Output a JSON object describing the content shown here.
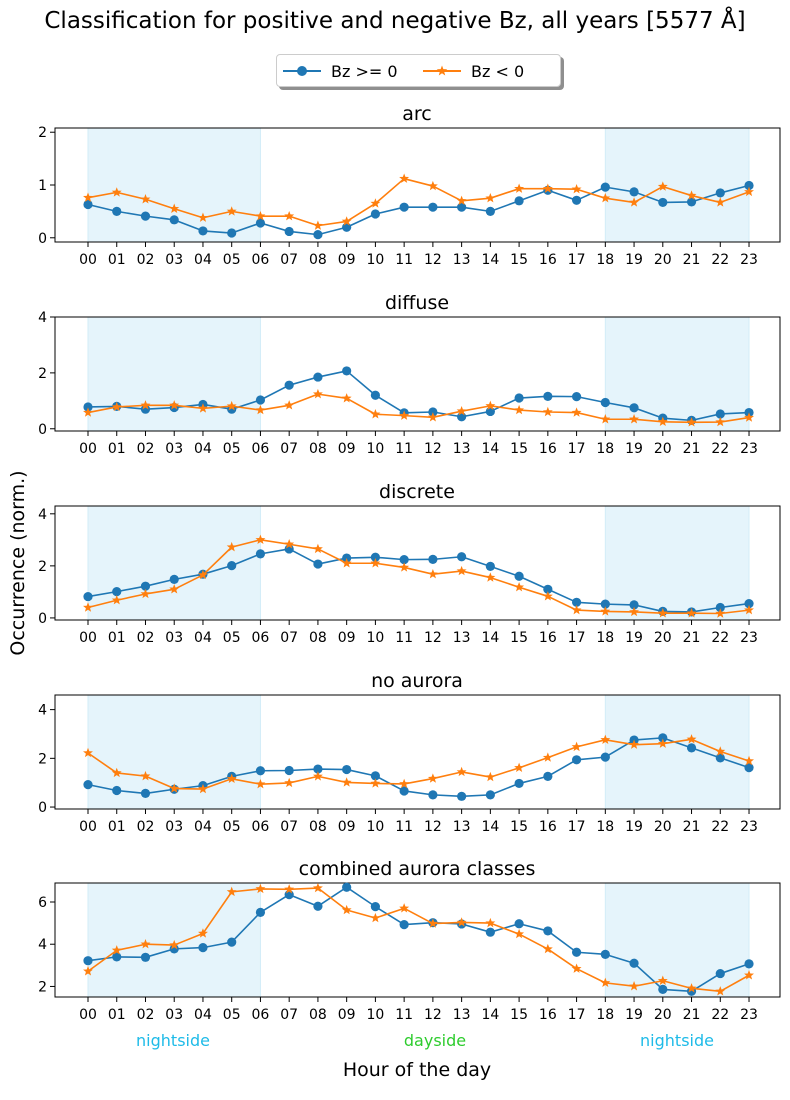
{
  "figure": {
    "title": "Classification for positive and negative Bz, all years [5577 Å]",
    "ylabel": "Occurrence (norm.)",
    "xlabel": "Hour of the day",
    "region_labels": [
      {
        "text": "nightside",
        "color": "#1ebbe8"
      },
      {
        "text": "dayside",
        "color": "#2ecc2e"
      },
      {
        "text": "nightside",
        "color": "#1ebbe8"
      }
    ],
    "legend": [
      {
        "label": "Bz >= 0",
        "color": "#1f77b4",
        "marker": "circle"
      },
      {
        "label": "Bz < 0",
        "color": "#ff7f0e",
        "marker": "star"
      }
    ],
    "shade_color": "#e5f4fb",
    "shaded_hour_ranges": [
      [
        "00",
        "06"
      ],
      [
        "18",
        "23"
      ]
    ]
  },
  "chart_data": [
    {
      "type": "line",
      "title": "arc",
      "x": [
        "00",
        "01",
        "02",
        "03",
        "04",
        "05",
        "06",
        "07",
        "08",
        "09",
        "10",
        "11",
        "12",
        "13",
        "14",
        "15",
        "16",
        "17",
        "18",
        "19",
        "20",
        "21",
        "22",
        "23"
      ],
      "ylim": [
        -0.08,
        2.08
      ],
      "yticks": [
        0,
        1,
        2
      ],
      "series": [
        {
          "name": "Bz >= 0",
          "values": [
            0.63,
            0.5,
            0.41,
            0.34,
            0.13,
            0.09,
            0.28,
            0.12,
            0.06,
            0.2,
            0.45,
            0.58,
            0.58,
            0.58,
            0.5,
            0.7,
            0.9,
            0.71,
            0.96,
            0.87,
            0.67,
            0.68,
            0.85,
            0.99
          ]
        },
        {
          "name": "Bz < 0",
          "values": [
            0.76,
            0.86,
            0.73,
            0.55,
            0.38,
            0.5,
            0.41,
            0.41,
            0.23,
            0.31,
            0.65,
            1.12,
            0.98,
            0.7,
            0.75,
            0.93,
            0.93,
            0.92,
            0.75,
            0.67,
            0.97,
            0.8,
            0.67,
            0.87
          ]
        }
      ]
    },
    {
      "type": "line",
      "title": "diffuse",
      "x": [
        "00",
        "01",
        "02",
        "03",
        "04",
        "05",
        "06",
        "07",
        "08",
        "09",
        "10",
        "11",
        "12",
        "13",
        "14",
        "15",
        "16",
        "17",
        "18",
        "19",
        "20",
        "21",
        "22",
        "23"
      ],
      "ylim": [
        -0.08,
        4.0
      ],
      "yticks": [
        0,
        2,
        4
      ],
      "series": [
        {
          "name": "Bz >= 0",
          "values": [
            0.78,
            0.8,
            0.7,
            0.76,
            0.87,
            0.7,
            1.03,
            1.56,
            1.85,
            2.07,
            1.2,
            0.57,
            0.6,
            0.43,
            0.62,
            1.1,
            1.16,
            1.15,
            0.94,
            0.75,
            0.38,
            0.3,
            0.53,
            0.58
          ]
        },
        {
          "name": "Bz < 0",
          "values": [
            0.58,
            0.78,
            0.84,
            0.84,
            0.73,
            0.81,
            0.67,
            0.84,
            1.24,
            1.09,
            0.52,
            0.47,
            0.41,
            0.63,
            0.82,
            0.67,
            0.6,
            0.58,
            0.34,
            0.34,
            0.25,
            0.23,
            0.24,
            0.4
          ]
        }
      ]
    },
    {
      "type": "line",
      "title": "discrete",
      "x": [
        "00",
        "01",
        "02",
        "03",
        "04",
        "05",
        "06",
        "07",
        "08",
        "09",
        "10",
        "11",
        "12",
        "13",
        "14",
        "15",
        "16",
        "17",
        "18",
        "19",
        "20",
        "21",
        "22",
        "23"
      ],
      "ylim": [
        -0.08,
        4.3
      ],
      "yticks": [
        0,
        2,
        4
      ],
      "series": [
        {
          "name": "Bz >= 0",
          "values": [
            0.82,
            1.01,
            1.22,
            1.48,
            1.68,
            2.01,
            2.46,
            2.65,
            2.07,
            2.3,
            2.33,
            2.24,
            2.25,
            2.35,
            1.98,
            1.6,
            1.1,
            0.6,
            0.53,
            0.5,
            0.25,
            0.23,
            0.4,
            0.55
          ]
        },
        {
          "name": "Bz < 0",
          "values": [
            0.4,
            0.68,
            0.92,
            1.1,
            1.65,
            2.72,
            3.0,
            2.83,
            2.65,
            2.1,
            2.1,
            1.94,
            1.68,
            1.8,
            1.55,
            1.18,
            0.83,
            0.3,
            0.25,
            0.23,
            0.18,
            0.18,
            0.17,
            0.3
          ]
        }
      ]
    },
    {
      "type": "line",
      "title": "no aurora",
      "x": [
        "00",
        "01",
        "02",
        "03",
        "04",
        "05",
        "06",
        "07",
        "08",
        "09",
        "10",
        "11",
        "12",
        "13",
        "14",
        "15",
        "16",
        "17",
        "18",
        "19",
        "20",
        "21",
        "22",
        "23"
      ],
      "ylim": [
        -0.08,
        4.6
      ],
      "yticks": [
        0,
        2,
        4
      ],
      "series": [
        {
          "name": "Bz >= 0",
          "values": [
            0.92,
            0.68,
            0.56,
            0.73,
            0.88,
            1.26,
            1.49,
            1.5,
            1.56,
            1.54,
            1.28,
            0.66,
            0.5,
            0.44,
            0.5,
            0.97,
            1.26,
            1.94,
            2.05,
            2.75,
            2.84,
            2.43,
            2.02,
            1.62
          ]
        },
        {
          "name": "Bz < 0",
          "values": [
            2.22,
            1.4,
            1.27,
            0.76,
            0.74,
            1.16,
            0.94,
            0.99,
            1.26,
            1.01,
            0.97,
            0.95,
            1.17,
            1.44,
            1.23,
            1.61,
            2.03,
            2.47,
            2.76,
            2.56,
            2.6,
            2.78,
            2.28,
            1.89
          ]
        }
      ]
    },
    {
      "type": "line",
      "title": "combined aurora classes",
      "x": [
        "00",
        "01",
        "02",
        "03",
        "04",
        "05",
        "06",
        "07",
        "08",
        "09",
        "10",
        "11",
        "12",
        "13",
        "14",
        "15",
        "16",
        "17",
        "18",
        "19",
        "20",
        "21",
        "22",
        "23"
      ],
      "ylim": [
        1.5,
        6.9
      ],
      "yticks": [
        2,
        4,
        6
      ],
      "series": [
        {
          "name": "Bz >= 0",
          "values": [
            3.22,
            3.4,
            3.38,
            3.78,
            3.84,
            4.1,
            5.51,
            6.35,
            5.8,
            6.7,
            5.78,
            4.93,
            5.02,
            4.96,
            4.57,
            4.97,
            4.63,
            3.62,
            3.52,
            3.1,
            1.86,
            1.77,
            2.61,
            3.07
          ]
        },
        {
          "name": "Bz < 0",
          "values": [
            2.72,
            3.71,
            4.0,
            3.96,
            4.51,
            6.48,
            6.62,
            6.6,
            6.66,
            5.62,
            5.24,
            5.7,
            4.98,
            5.03,
            5.0,
            4.48,
            3.77,
            2.84,
            2.17,
            2.01,
            2.27,
            1.91,
            1.77,
            2.53
          ]
        }
      ]
    }
  ]
}
